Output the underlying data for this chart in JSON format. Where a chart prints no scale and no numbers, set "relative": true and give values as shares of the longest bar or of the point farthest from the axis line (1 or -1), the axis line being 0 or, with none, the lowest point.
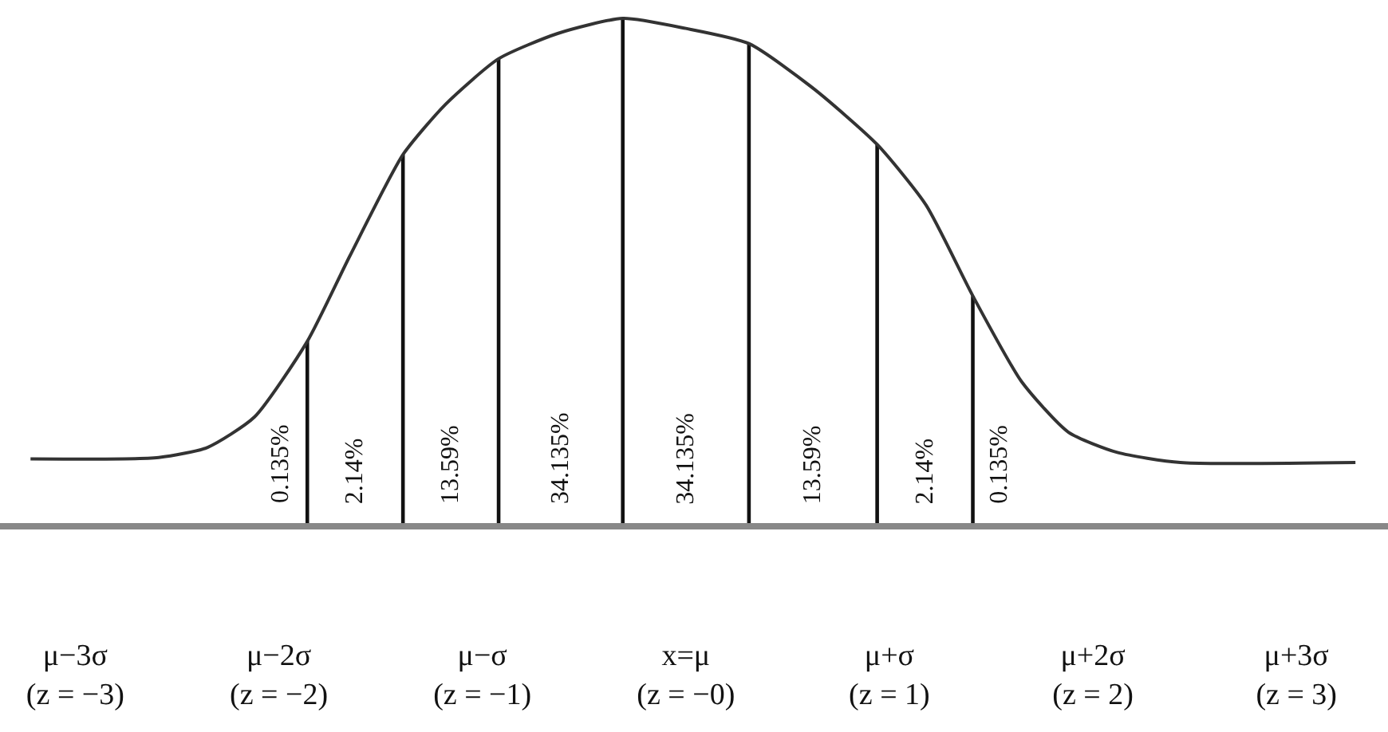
{
  "chart_data": {
    "type": "line",
    "relative": true,
    "xlim": [
      -3.37,
      3.45
    ],
    "xticks": [
      {
        "value": -3,
        "label": "μ−3σ\n(z = −3)"
      },
      {
        "value": -2,
        "label": "μ−2σ\n(z = −2)"
      },
      {
        "value": -1,
        "label": "μ−σ\n(z = −1)"
      },
      {
        "value": 0,
        "label": "x=μ\n(z = −0)"
      },
      {
        "value": 1,
        "label": "μ+σ\n(z = 1)"
      },
      {
        "value": 2,
        "label": "μ+2σ\n(z = 2)"
      },
      {
        "value": 3,
        "label": "μ+3σ\n(z = 3)"
      }
    ],
    "series": [
      {
        "color": "#333333",
        "x": [
          -3.22,
          -2.59,
          -2.35,
          -2.12,
          -1.86,
          -1.65,
          -1.39,
          -1.18,
          -0.92,
          -0.63,
          -0.31,
          0,
          0.31,
          0.63,
          0.94,
          1.18,
          1.41,
          1.65,
          1.88,
          2.12,
          2.43,
          3.29
        ],
        "values": [
          0.127,
          0.13,
          0.15,
          0.21,
          0.36,
          0.53,
          0.73,
          0.83,
          0.92,
          0.97,
          1.0,
          0.98,
          0.95,
          0.86,
          0.75,
          0.63,
          0.45,
          0.28,
          0.18,
          0.14,
          0.12,
          0.12
        ]
      },
      {
        "type": "bar",
        "color": "#111111",
        "x": [
          -1.86,
          -1.39,
          -0.92,
          -0.31,
          0.31,
          0.94,
          1.41
        ],
        "values": [
          0.36,
          0.73,
          0.92,
          1.0,
          0.95,
          0.75,
          0.45
        ]
      }
    ],
    "annotations": [
      "0.135%",
      "2.14%",
      "13.59%",
      "34.135%",
      "34.135%",
      "13.59%",
      "2.14%",
      "0.135%"
    ],
    "grid": false
  }
}
